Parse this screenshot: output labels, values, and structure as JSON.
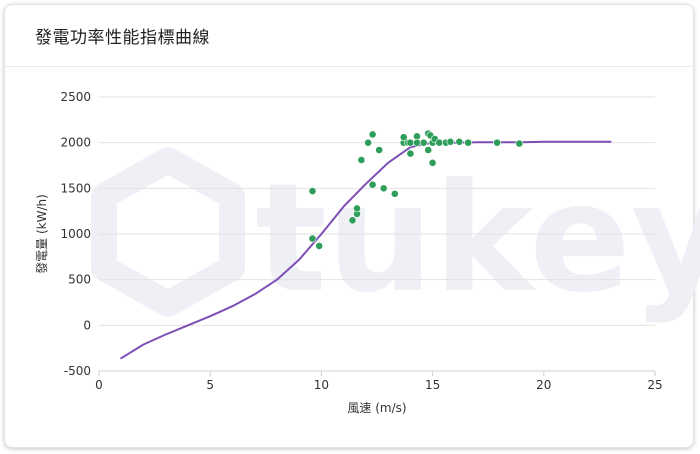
{
  "title": "發電功率性能指標曲線",
  "watermark": "tukey",
  "colors": {
    "curve": "#7b4fb5",
    "points": "#2f9e5a",
    "grid": "#e2e2e2",
    "axis_text": "#333333",
    "watermark": "#eef0f6"
  },
  "chart_data": {
    "type": "line",
    "title": "發電功率性能指標曲線",
    "xlabel": "風速 (m/s)",
    "ylabel": "發電量 (kW/h)",
    "xlim": [
      0,
      25
    ],
    "ylim": [
      -500,
      2500
    ],
    "xticks": [
      0,
      5,
      10,
      15,
      20,
      25
    ],
    "yticks": [
      -500,
      0,
      500,
      1000,
      1500,
      2000,
      2500
    ],
    "grid": true,
    "legend": "none",
    "series": [
      {
        "type": "line",
        "x": [
          1,
          2,
          3,
          4,
          5,
          6,
          7,
          8,
          9,
          10,
          11,
          12,
          13,
          14,
          15,
          16,
          17,
          18,
          19,
          20,
          21,
          22,
          23
        ],
        "y": [
          -360,
          -210,
          -100,
          0,
          100,
          210,
          340,
          500,
          720,
          1000,
          1300,
          1550,
          1780,
          1950,
          2000,
          2000,
          2005,
          2005,
          2005,
          2010,
          2010,
          2010,
          2010
        ]
      },
      {
        "type": "scatter",
        "x": [
          9.6,
          9.6,
          9.9,
          11.4,
          11.6,
          11.6,
          11.8,
          12.1,
          12.3,
          12.3,
          12.6,
          12.8,
          13.3,
          13.7,
          13.7,
          13.9,
          14.0,
          14.0,
          14.3,
          14.3,
          14.6,
          14.8,
          14.8,
          14.9,
          15.0,
          15.0,
          15.1,
          15.3,
          15.6,
          15.8,
          16.2,
          16.6,
          17.9,
          18.9
        ],
        "y": [
          1470,
          950,
          870,
          1150,
          1220,
          1280,
          1810,
          2000,
          2090,
          1540,
          1920,
          1500,
          1440,
          2000,
          2060,
          2000,
          1880,
          2000,
          2070,
          2000,
          2000,
          2100,
          1920,
          2080,
          1780,
          2000,
          2040,
          2000,
          2000,
          2010,
          2010,
          2000,
          2000,
          1990
        ]
      }
    ]
  }
}
